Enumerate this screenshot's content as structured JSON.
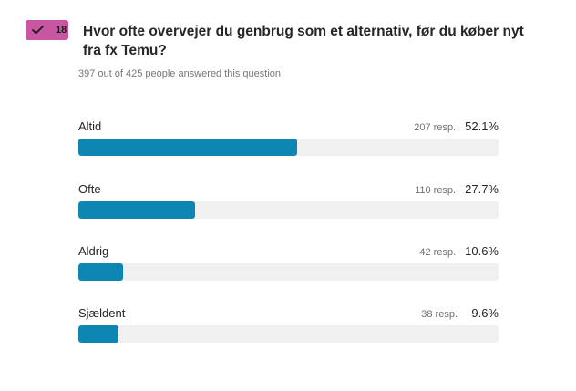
{
  "badge": {
    "number": "18",
    "icon": "checkmark-icon",
    "color": "#c956a1"
  },
  "question": {
    "text": "Hvor ofte overvejer du genbrug som et alternativ, før du køber nyt fra fx Temu?"
  },
  "summary": {
    "text": "397 out of 425 people answered this question"
  },
  "bar_color": "#0d87b1",
  "options": [
    {
      "label": "Altid",
      "responses": "207 resp.",
      "percent": "52.1%",
      "fraction": 0.521
    },
    {
      "label": "Ofte",
      "responses": "110 resp.",
      "percent": "27.7%",
      "fraction": 0.277
    },
    {
      "label": "Aldrig",
      "responses": "42 resp.",
      "percent": "10.6%",
      "fraction": 0.106
    },
    {
      "label": "Sjældent",
      "responses": "38 resp.",
      "percent": "9.6%",
      "fraction": 0.096
    }
  ]
}
